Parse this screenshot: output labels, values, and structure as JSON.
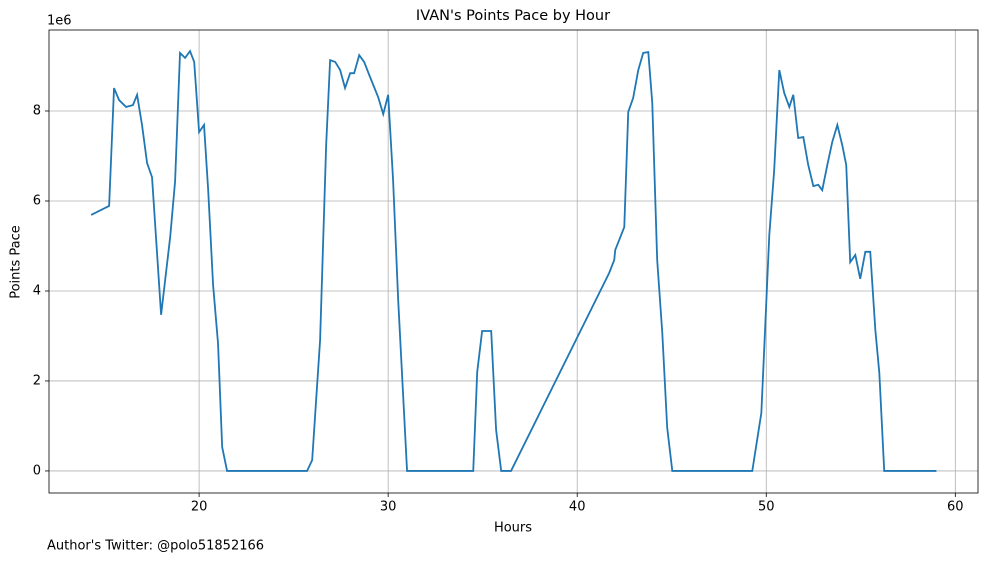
{
  "chart_data": {
    "type": "line",
    "title": "IVAN's Points Pace by Hour",
    "xlabel": "Hours",
    "ylabel": "Points Pace",
    "y_offset_label": "1e6",
    "xlim": [
      12.06,
      61.2
    ],
    "xticks": [
      20,
      30,
      40,
      50,
      60
    ],
    "ylim": [
      -490000,
      9800000
    ],
    "yticks": [
      {
        "value": 0,
        "label": "0"
      },
      {
        "value": 2000000,
        "label": "2"
      },
      {
        "value": 4000000,
        "label": "4"
      },
      {
        "value": 6000000,
        "label": "6"
      },
      {
        "value": 8000000,
        "label": "8"
      }
    ],
    "grid": true,
    "series": [
      {
        "name": "IVAN",
        "color": "#1f77b4",
        "x": [
          14.29,
          15.24,
          15.5,
          15.77,
          16.14,
          16.5,
          16.72,
          16.98,
          17.25,
          17.51,
          17.99,
          18.47,
          18.73,
          18.99,
          19.26,
          19.52,
          19.74,
          20,
          20.26,
          20.48,
          20.74,
          21.0,
          21.22,
          21.48,
          25.71,
          25.98,
          26.4,
          26.72,
          26.93,
          27.2,
          27.46,
          27.72,
          27.99,
          28.2,
          28.47,
          28.73,
          29.0,
          29.47,
          29.74,
          30,
          30.26,
          30.53,
          31.0,
          34.5,
          34.71,
          34.97,
          35.45,
          35.71,
          35.98,
          36.5,
          41.69,
          41.96,
          42.01,
          42.49,
          42.7,
          42.96,
          43.23,
          43.49,
          43.76,
          43.97,
          44.23,
          44.5,
          44.76,
          45.03,
          49.26,
          49.74,
          50.16,
          50.42,
          50.69,
          50.95,
          51.22,
          51.43,
          51.69,
          51.96,
          52.22,
          52.49,
          52.75,
          52.96,
          53.23,
          53.49,
          53.76,
          54.02,
          54.23,
          54.44,
          54.71,
          54.97,
          55.24,
          55.5,
          55.77,
          55.98,
          56.24,
          59.0
        ],
        "values": [
          5690000,
          5890000,
          8510000,
          8240000,
          8090000,
          8130000,
          8360000,
          7690000,
          6840000,
          6530000,
          3470000,
          5200000,
          6440000,
          9290000,
          9180000,
          9330000,
          9090000,
          7530000,
          7690000,
          6240000,
          4130000,
          2840000,
          530000,
          0,
          0,
          240000,
          2910000,
          7240000,
          9130000,
          9090000,
          8910000,
          8510000,
          8840000,
          8840000,
          9240000,
          9090000,
          8800000,
          8310000,
          7930000,
          8360000,
          6470000,
          3800000,
          0,
          0,
          2200000,
          3110000,
          3110000,
          910000,
          0,
          0,
          4400000,
          4690000,
          4910000,
          5420000,
          7980000,
          8290000,
          8910000,
          9290000,
          9310000,
          8180000,
          4690000,
          3070000,
          960000,
          0,
          0,
          1290000,
          5240000,
          6690000,
          8910000,
          8400000,
          8090000,
          8360000,
          7400000,
          7420000,
          6800000,
          6330000,
          6360000,
          6240000,
          6800000,
          7310000,
          7690000,
          7240000,
          6800000,
          4640000,
          4800000,
          4270000,
          4870000,
          4870000,
          3130000,
          2180000,
          0,
          0
        ]
      }
    ]
  },
  "footer": "Author's Twitter: @polo51852166"
}
